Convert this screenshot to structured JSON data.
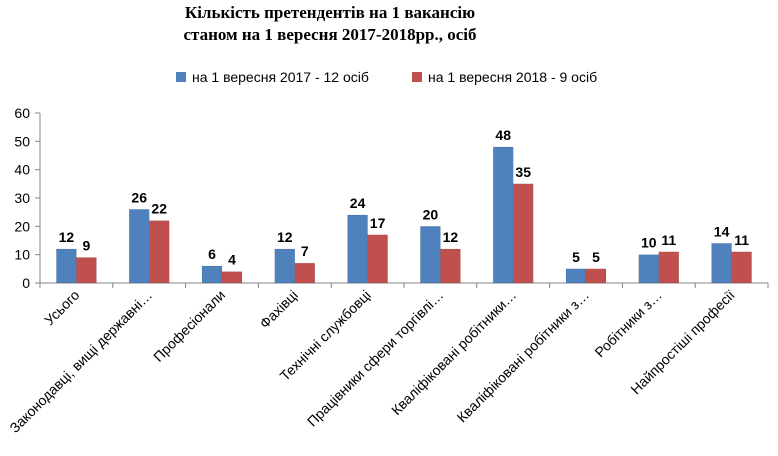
{
  "chart_data": {
    "type": "bar",
    "title_line1": "Кількість претендентів на 1 вакансію",
    "title_line2": "станом на 1 вересня  2017-2018рр., осіб",
    "categories": [
      "Усього",
      "Законодавці, вищі державні…",
      "Професіонали",
      "Фахівці",
      "Технічні службовці",
      "Працівники сфери торгівлі…",
      "Кваліфіковані робітники…",
      "Кваліфіковані робітники з…",
      "Робітники з…",
      "Найпростіші професії"
    ],
    "series": [
      {
        "name": "на 1 вересня 2017  - 12 осіб",
        "color": "#4f81bd",
        "values": [
          12,
          26,
          6,
          12,
          24,
          20,
          48,
          5,
          10,
          14
        ]
      },
      {
        "name": "на 1 вересня 2018 - 9 осіб",
        "color": "#c0504d",
        "values": [
          9,
          22,
          4,
          7,
          17,
          12,
          35,
          5,
          11,
          11
        ]
      }
    ],
    "ylim": [
      0,
      60
    ],
    "yticks": [
      0,
      10,
      20,
      30,
      40,
      50,
      60
    ],
    "legend_position": "top",
    "grid": false,
    "data_labels": true
  }
}
